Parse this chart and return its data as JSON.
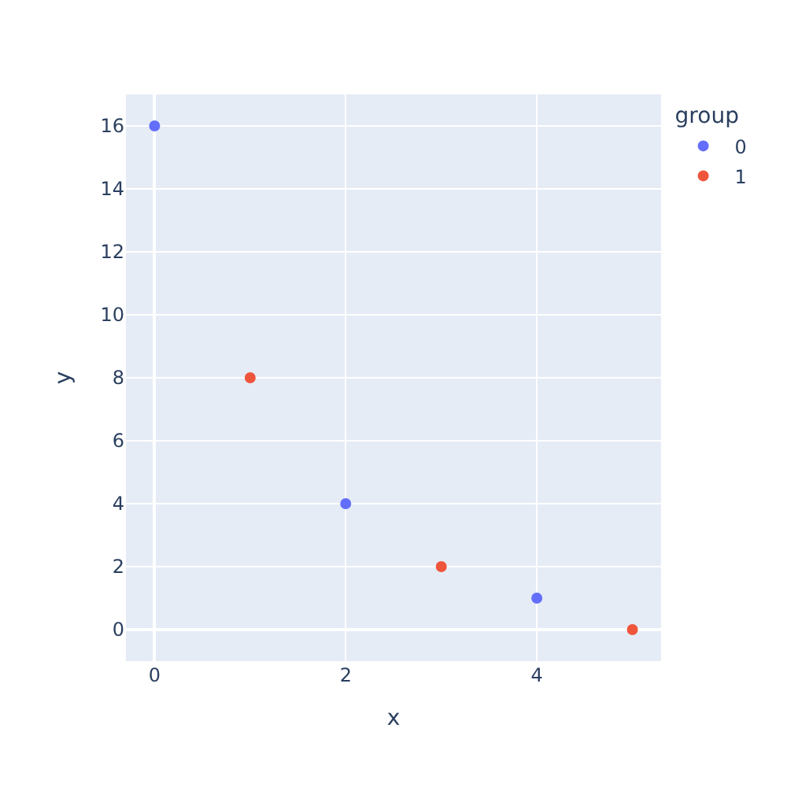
{
  "chart_data": {
    "type": "scatter",
    "xlabel": "x",
    "ylabel": "y",
    "legend_title": "group",
    "series": [
      {
        "name": "0",
        "color": "#636efa",
        "x": [
          0,
          2,
          4
        ],
        "values": [
          16,
          4,
          1
        ]
      },
      {
        "name": "1",
        "color": "#ef553b",
        "x": [
          1,
          3,
          5
        ],
        "values": [
          8,
          2,
          0
        ]
      }
    ],
    "xlim": [
      -0.3,
      5.3
    ],
    "xticks": [
      0,
      2,
      4
    ],
    "ylim": [
      -1,
      17
    ],
    "yticks": [
      0,
      2,
      4,
      6,
      8,
      10,
      12,
      14,
      16
    ],
    "grid": true,
    "legend": "top right",
    "marker": "circle"
  }
}
